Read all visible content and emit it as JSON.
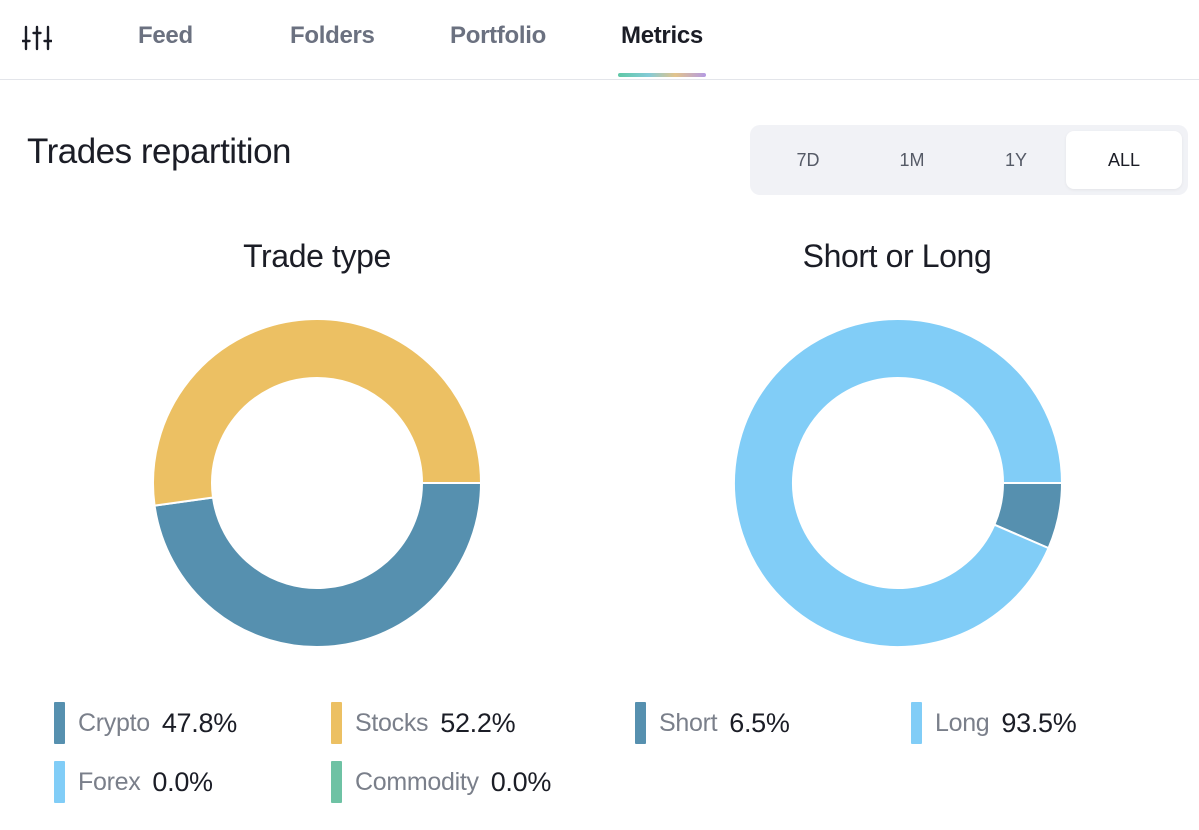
{
  "nav": {
    "tabs": [
      {
        "label": "Feed"
      },
      {
        "label": "Folders"
      },
      {
        "label": "Portfolio"
      },
      {
        "label": "Metrics"
      }
    ],
    "active_tab": "Metrics"
  },
  "section": {
    "title": "Trades repartition",
    "range_options": [
      "7D",
      "1M",
      "1Y",
      "ALL"
    ],
    "selected_range": "ALL"
  },
  "colors": {
    "crypto": "#5690af",
    "stocks": "#ecc063",
    "forex": "#81cdf7",
    "commodity": "#6ec2a4",
    "short": "#5690af",
    "long": "#81cdf7"
  },
  "chart_data": [
    {
      "type": "pie",
      "title": "Trade type",
      "categories": [
        "Crypto",
        "Stocks",
        "Forex",
        "Commodity"
      ],
      "values": [
        47.8,
        52.2,
        0.0,
        0.0
      ],
      "value_labels": [
        "47.8%",
        "52.2%",
        "0.0%",
        "0.0%"
      ],
      "unit": "%",
      "donut": true
    },
    {
      "type": "pie",
      "title": "Short or Long",
      "categories": [
        "Short",
        "Long"
      ],
      "values": [
        6.5,
        93.5
      ],
      "value_labels": [
        "6.5%",
        "93.5%"
      ],
      "unit": "%",
      "donut": true
    }
  ]
}
